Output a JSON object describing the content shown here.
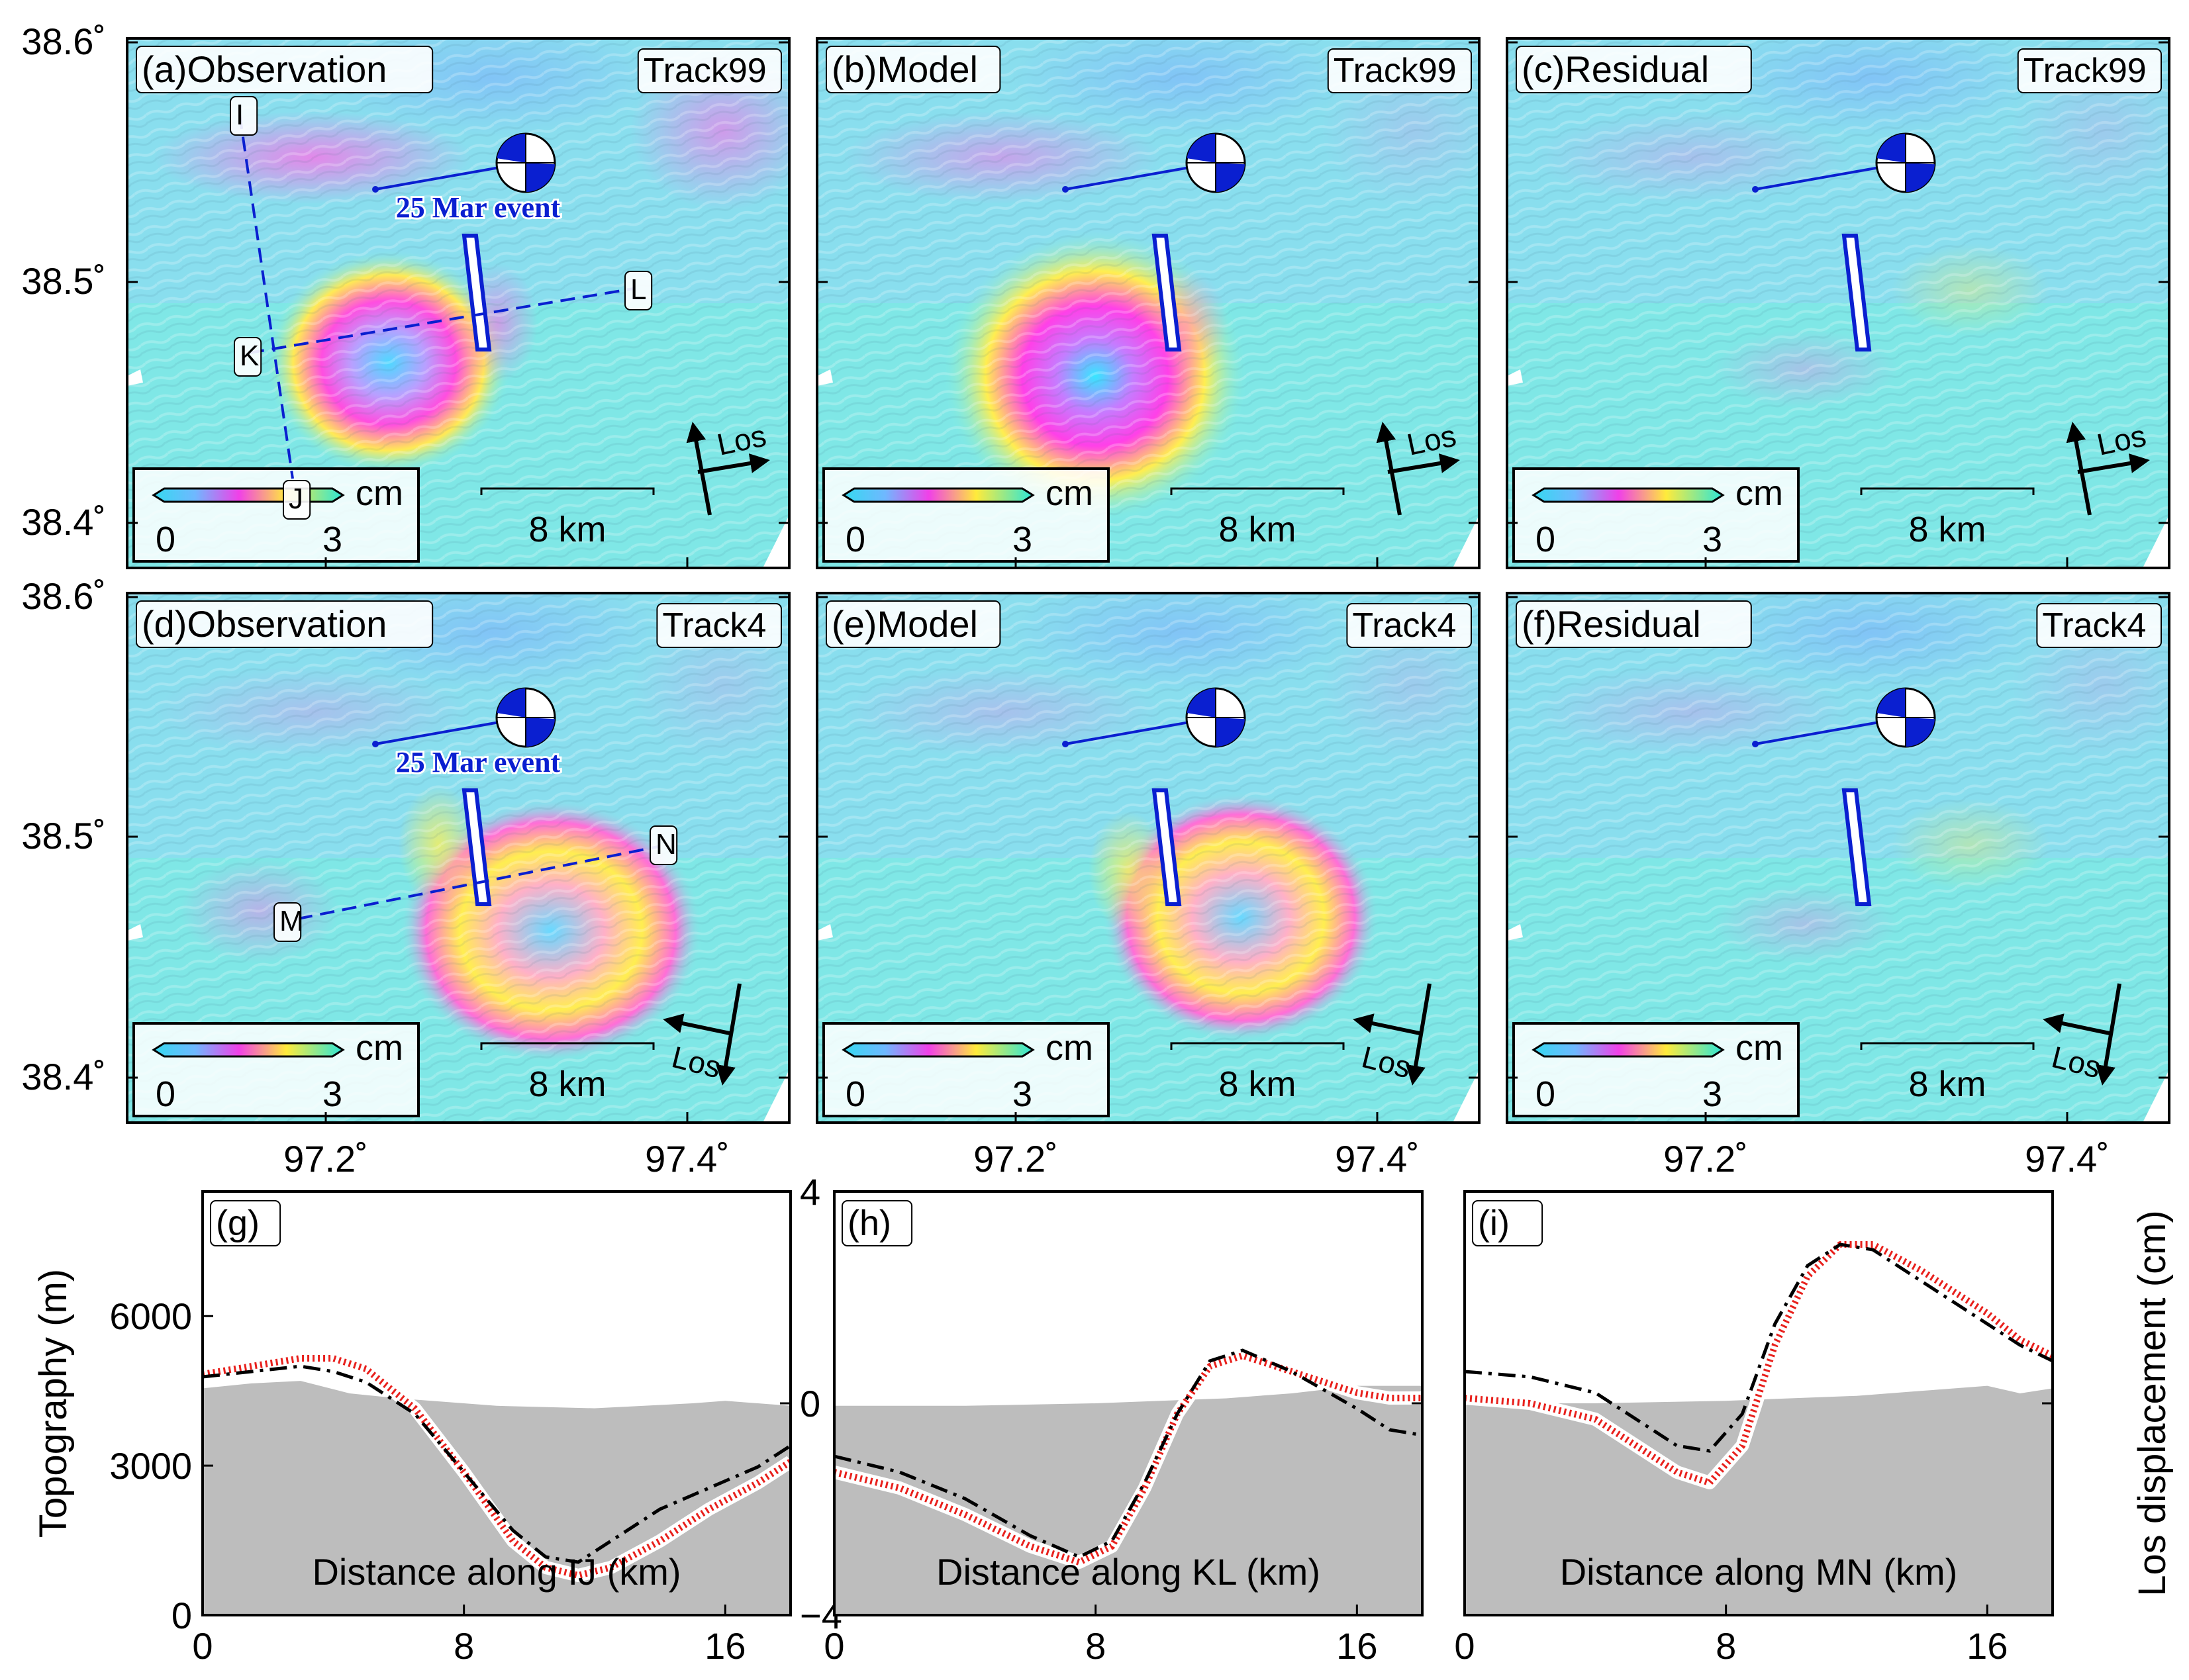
{
  "map_panels": [
    {
      "label": "(a)Observation",
      "track": "Track99",
      "style": "obs_a",
      "profile": "IJ",
      "event_label": "25 Mar event",
      "los": "asc"
    },
    {
      "label": "(b)Model",
      "track": "Track99",
      "style": "mod_b",
      "profile": null,
      "event_label": null,
      "los": "asc"
    },
    {
      "label": "(c)Residual",
      "track": "Track99",
      "style": "res",
      "profile": null,
      "event_label": null,
      "los": "asc"
    },
    {
      "label": "(d)Observation",
      "track": "Track4",
      "style": "obs_d",
      "profile": "MN",
      "event_label": "25 Mar event",
      "los": "desc"
    },
    {
      "label": "(e)Model",
      "track": "Track4",
      "style": "mod_e",
      "profile": null,
      "event_label": null,
      "los": "desc"
    },
    {
      "label": "(f)Residual",
      "track": "Track4",
      "style": "res",
      "profile": null,
      "event_label": null,
      "los": "desc"
    }
  ],
  "profile_points": {
    "IJ": {
      "start": "I",
      "end": "J"
    },
    "KL": {
      "start": "K",
      "end": "L"
    },
    "MN": {
      "start": "M",
      "end": "N"
    }
  },
  "common": {
    "colorbar_unit": "cm",
    "colorbar_min": "0",
    "colorbar_max": "3",
    "scale_label": "8 km",
    "los_label": "Los"
  },
  "map_axes": {
    "lat_ticks": [
      "38.6˚",
      "38.5˚",
      "38.4˚"
    ],
    "lon_ticks": [
      "97.2˚",
      "97.4˚"
    ]
  },
  "chart_data": [
    {
      "type": "line",
      "panel_label": "(g)",
      "xlabel": "Distance along IJ (km)",
      "x_ticks": [
        "0",
        "8",
        "16"
      ],
      "xlim": [
        0,
        18
      ],
      "left_ylabel": "Topography (m)",
      "left_ylim": [
        0,
        8500
      ],
      "left_ticks": [
        "0",
        "3000",
        "6000"
      ],
      "right_ylabel": "Los displacement (cm)",
      "right_ylim": [
        -4,
        4
      ],
      "right_ticks": [
        "−4",
        "0",
        "4"
      ],
      "series": [
        {
          "name": "Topography",
          "axis": "left",
          "x": [
            0,
            1.5,
            3,
            4.5,
            6,
            9,
            12,
            15,
            16,
            18
          ],
          "values": [
            4550,
            4650,
            4700,
            4450,
            4350,
            4200,
            4150,
            4250,
            4300,
            4200
          ]
        },
        {
          "name": "Observation",
          "axis": "right",
          "x": [
            0,
            1.5,
            3,
            4,
            5,
            6.5,
            8,
            9.5,
            10.5,
            11.5,
            12.5,
            14,
            15.5,
            17,
            18
          ],
          "values": [
            0.5,
            0.6,
            0.7,
            0.6,
            0.4,
            -0.2,
            -1.3,
            -2.4,
            -2.9,
            -3.0,
            -2.6,
            -2.0,
            -1.6,
            -1.2,
            -0.8
          ]
        },
        {
          "name": "Model",
          "axis": "right",
          "x": [
            0,
            1.5,
            3,
            4,
            5,
            6.5,
            8,
            9.5,
            10.5,
            11.5,
            12.5,
            14,
            15.5,
            17,
            18
          ],
          "values": [
            0.55,
            0.7,
            0.85,
            0.85,
            0.65,
            -0.1,
            -1.3,
            -2.6,
            -3.1,
            -3.25,
            -3.1,
            -2.6,
            -2.0,
            -1.5,
            -1.1
          ]
        }
      ]
    },
    {
      "type": "line",
      "panel_label": "(h)",
      "xlabel": "Distance along KL (km)",
      "x_ticks": [
        "0",
        "8",
        "16"
      ],
      "xlim": [
        0,
        18
      ],
      "series": [
        {
          "name": "Topography",
          "axis": "left",
          "x": [
            0,
            4,
            8,
            12,
            14,
            16,
            18
          ],
          "values": [
            4200,
            4200,
            4250,
            4350,
            4450,
            4600,
            4600
          ]
        },
        {
          "name": "Observation",
          "axis": "right",
          "x": [
            0,
            2,
            4,
            6,
            7.5,
            8.5,
            9.5,
            10.5,
            11.5,
            12.5,
            14,
            16,
            17,
            18
          ],
          "values": [
            -1.0,
            -1.3,
            -1.8,
            -2.5,
            -2.9,
            -2.6,
            -1.5,
            -0.2,
            0.8,
            1.0,
            0.6,
            -0.1,
            -0.5,
            -0.6
          ]
        },
        {
          "name": "Model",
          "axis": "right",
          "x": [
            0,
            2,
            4,
            6,
            7.5,
            8.5,
            9.5,
            10.5,
            11.5,
            12.5,
            14,
            16,
            17,
            18
          ],
          "values": [
            -1.3,
            -1.6,
            -2.1,
            -2.7,
            -3.0,
            -2.7,
            -1.6,
            -0.2,
            0.7,
            0.9,
            0.6,
            0.2,
            0.1,
            0.1
          ]
        }
      ]
    },
    {
      "type": "line",
      "panel_label": "(i)",
      "xlabel": "Distance along MN (km)",
      "x_ticks": [
        "0",
        "8",
        "16"
      ],
      "xlim": [
        0,
        18
      ],
      "series": [
        {
          "name": "Topography",
          "axis": "left",
          "x": [
            0,
            4,
            8,
            12,
            14,
            16,
            17,
            18
          ],
          "values": [
            4250,
            4250,
            4300,
            4400,
            4500,
            4600,
            4450,
            4550
          ]
        },
        {
          "name": "Observation",
          "axis": "right",
          "x": [
            0,
            2,
            4,
            5.5,
            6.5,
            7.5,
            8.5,
            9.5,
            10.5,
            11.5,
            12.5,
            14,
            16,
            17,
            18
          ],
          "values": [
            0.6,
            0.5,
            0.2,
            -0.4,
            -0.8,
            -0.9,
            -0.2,
            1.5,
            2.6,
            3.0,
            2.9,
            2.3,
            1.5,
            1.1,
            0.8
          ]
        },
        {
          "name": "Model",
          "axis": "right",
          "x": [
            0,
            2,
            4,
            5.5,
            6.5,
            7.5,
            8.5,
            9.5,
            10.5,
            11.5,
            12.5,
            14,
            16,
            17,
            18
          ],
          "values": [
            0.1,
            0.0,
            -0.3,
            -0.9,
            -1.3,
            -1.5,
            -0.8,
            1.1,
            2.4,
            3.0,
            3.0,
            2.5,
            1.7,
            1.2,
            0.9
          ]
        }
      ]
    }
  ]
}
